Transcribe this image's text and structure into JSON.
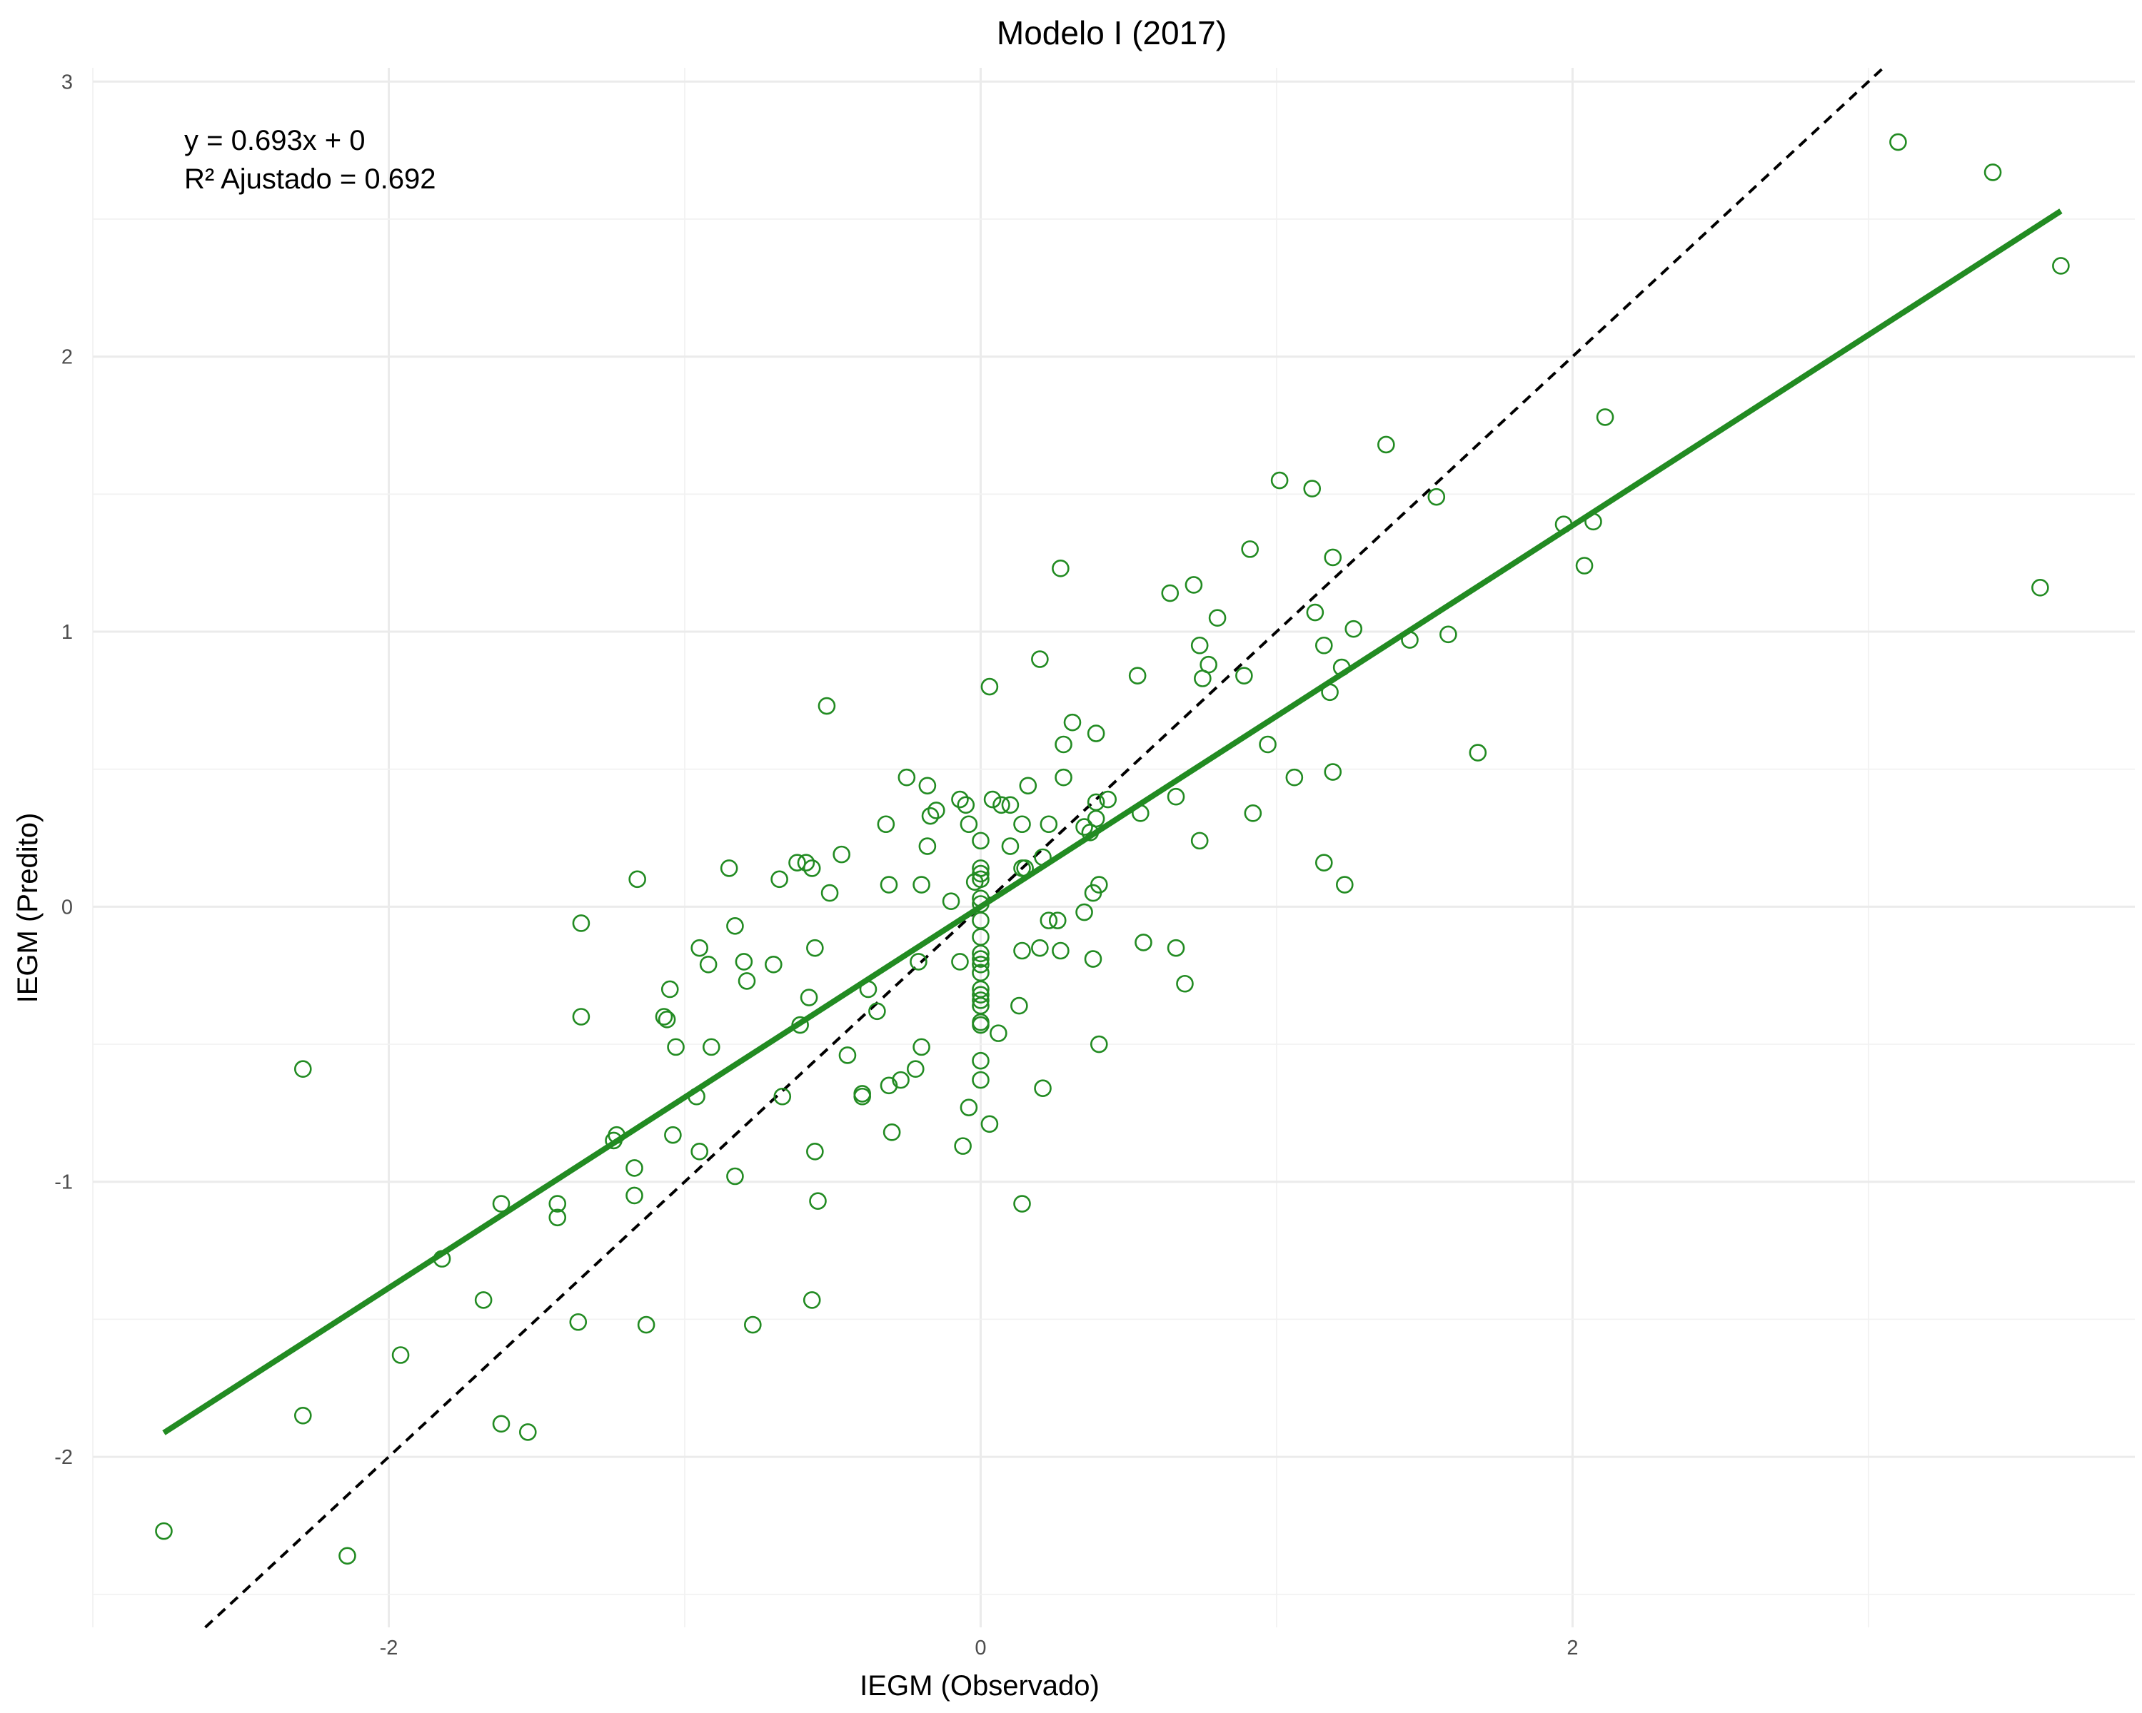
{
  "chart_data": {
    "type": "scatter",
    "title": "Modelo I (2017)",
    "xlabel": "IEGM (Observado)",
    "ylabel": "IEGM (Predito)",
    "xlim": [
      -3.0,
      3.9
    ],
    "ylim": [
      -2.62,
      3.05
    ],
    "x_ticks": [
      -2,
      0,
      2
    ],
    "x_tick_labels": [
      "-2",
      "0",
      "2"
    ],
    "y_ticks": [
      -2,
      -1,
      0,
      1,
      2,
      3
    ],
    "y_tick_labels": [
      "-2",
      "-1",
      "0",
      "1",
      "2",
      "3"
    ],
    "grid": true,
    "colors": {
      "points": "#228B22",
      "fit_line": "#228B22",
      "reference_line": "#000000"
    },
    "annotations": [
      "y = 0.693x + 0",
      "R² Ajustado = 0.692"
    ],
    "fit_line": {
      "slope": 0.693,
      "intercept": 0,
      "x_range": [
        -2.76,
        3.65
      ]
    },
    "reference_line": {
      "slope": 1,
      "intercept": 0,
      "style": "dashed"
    },
    "points": [
      [
        -2.76,
        -2.27
      ],
      [
        -2.14,
        -2.36
      ],
      [
        -2.29,
        -1.85
      ],
      [
        -2.29,
        -0.59
      ],
      [
        -1.96,
        -1.63
      ],
      [
        -1.82,
        -1.28
      ],
      [
        -1.68,
        -1.43
      ],
      [
        -1.62,
        -1.08
      ],
      [
        -1.62,
        -1.88
      ],
      [
        -1.53,
        -1.91
      ],
      [
        -1.43,
        -1.08
      ],
      [
        -1.43,
        -1.13
      ],
      [
        -1.36,
        -1.51
      ],
      [
        -1.35,
        -0.4
      ],
      [
        -1.35,
        -0.06
      ],
      [
        -1.24,
        -0.85
      ],
      [
        -1.23,
        -0.83
      ],
      [
        -1.17,
        -0.95
      ],
      [
        -1.17,
        -1.05
      ],
      [
        -1.16,
        0.1
      ],
      [
        -1.13,
        -1.52
      ],
      [
        -1.07,
        -0.4
      ],
      [
        -1.06,
        -0.41
      ],
      [
        -1.05,
        -0.3
      ],
      [
        -1.04,
        -0.83
      ],
      [
        -1.03,
        -0.51
      ],
      [
        -0.96,
        -0.69
      ],
      [
        -0.95,
        -0.89
      ],
      [
        -0.95,
        -0.15
      ],
      [
        -0.92,
        -0.21
      ],
      [
        -0.91,
        -0.51
      ],
      [
        -0.85,
        0.14
      ],
      [
        -0.83,
        -0.98
      ],
      [
        -0.83,
        -0.07
      ],
      [
        -0.8,
        -0.2
      ],
      [
        -0.79,
        -0.27
      ],
      [
        -0.77,
        -1.52
      ],
      [
        -0.7,
        -0.21
      ],
      [
        -0.68,
        0.1
      ],
      [
        -0.67,
        -0.69
      ],
      [
        -0.62,
        0.16
      ],
      [
        -0.61,
        -0.43
      ],
      [
        -0.59,
        0.16
      ],
      [
        -0.58,
        -0.33
      ],
      [
        -0.57,
        0.14
      ],
      [
        -0.57,
        -1.43
      ],
      [
        -0.56,
        -0.15
      ],
      [
        -0.56,
        -0.89
      ],
      [
        -0.55,
        -1.07
      ],
      [
        -0.52,
        0.73
      ],
      [
        -0.51,
        0.05
      ],
      [
        -0.47,
        0.19
      ],
      [
        -0.45,
        -0.54
      ],
      [
        -0.4,
        -0.68
      ],
      [
        -0.4,
        -0.69
      ],
      [
        -0.38,
        -0.3
      ],
      [
        -0.35,
        -0.38
      ],
      [
        -0.32,
        0.3
      ],
      [
        -0.31,
        0.08
      ],
      [
        -0.31,
        -0.65
      ],
      [
        -0.3,
        -0.82
      ],
      [
        -0.27,
        -0.63
      ],
      [
        -0.25,
        0.47
      ],
      [
        -0.22,
        -0.59
      ],
      [
        -0.21,
        -0.2
      ],
      [
        -0.2,
        0.08
      ],
      [
        -0.2,
        -0.51
      ],
      [
        -0.18,
        0.44
      ],
      [
        -0.18,
        0.22
      ],
      [
        -0.17,
        0.33
      ],
      [
        -0.15,
        0.35
      ],
      [
        -0.1,
        0.02
      ],
      [
        -0.07,
        0.39
      ],
      [
        -0.07,
        -0.2
      ],
      [
        -0.06,
        -0.87
      ],
      [
        -0.05,
        0.37
      ],
      [
        -0.04,
        0.3
      ],
      [
        -0.04,
        -0.73
      ],
      [
        -0.02,
        0.09
      ],
      [
        0,
        0.24
      ],
      [
        0,
        0.14
      ],
      [
        0,
        0.12
      ],
      [
        0,
        0.1
      ],
      [
        0,
        0.03
      ],
      [
        0,
        0.01
      ],
      [
        0,
        -0.05
      ],
      [
        0,
        -0.11
      ],
      [
        0,
        -0.17
      ],
      [
        0,
        -0.19
      ],
      [
        0,
        -0.21
      ],
      [
        0,
        -0.24
      ],
      [
        0,
        -0.3
      ],
      [
        0,
        -0.32
      ],
      [
        0,
        -0.34
      ],
      [
        0,
        -0.36
      ],
      [
        0,
        -0.42
      ],
      [
        0,
        -0.43
      ],
      [
        0,
        -0.56
      ],
      [
        0,
        -0.63
      ],
      [
        0.03,
        0.8
      ],
      [
        0.03,
        -0.79
      ],
      [
        0.04,
        0.39
      ],
      [
        0.06,
        -0.46
      ],
      [
        0.07,
        0.37
      ],
      [
        0.1,
        0.22
      ],
      [
        0.1,
        0.37
      ],
      [
        0.13,
        -0.36
      ],
      [
        0.14,
        -1.08
      ],
      [
        0.14,
        0.3
      ],
      [
        0.14,
        0.14
      ],
      [
        0.14,
        -0.16
      ],
      [
        0.15,
        0.14
      ],
      [
        0.16,
        0.44
      ],
      [
        0.2,
        -0.15
      ],
      [
        0.2,
        0.9
      ],
      [
        0.21,
        0.18
      ],
      [
        0.21,
        -0.66
      ],
      [
        0.23,
        -0.05
      ],
      [
        0.23,
        0.3
      ],
      [
        0.26,
        -0.05
      ],
      [
        0.27,
        -0.16
      ],
      [
        0.27,
        1.23
      ],
      [
        0.28,
        0.59
      ],
      [
        0.28,
        0.47
      ],
      [
        0.31,
        0.67
      ],
      [
        0.35,
        0.29
      ],
      [
        0.35,
        -0.02
      ],
      [
        0.37,
        0.27
      ],
      [
        0.38,
        0.05
      ],
      [
        0.38,
        -0.19
      ],
      [
        0.39,
        0.63
      ],
      [
        0.39,
        0.32
      ],
      [
        0.39,
        0.38
      ],
      [
        0.4,
        0.08
      ],
      [
        0.4,
        -0.5
      ],
      [
        0.43,
        0.39
      ],
      [
        0.53,
        0.84
      ],
      [
        0.54,
        0.34
      ],
      [
        0.55,
        -0.13
      ],
      [
        0.64,
        1.14
      ],
      [
        0.66,
        0.4
      ],
      [
        0.66,
        -0.15
      ],
      [
        0.69,
        -0.28
      ],
      [
        0.72,
        1.17
      ],
      [
        0.74,
        0.95
      ],
      [
        0.74,
        0.24
      ],
      [
        0.75,
        0.83
      ],
      [
        0.77,
        0.88
      ],
      [
        0.8,
        1.05
      ],
      [
        0.89,
        0.84
      ],
      [
        0.91,
        1.3
      ],
      [
        0.92,
        0.34
      ],
      [
        0.97,
        0.59
      ],
      [
        1.01,
        1.55
      ],
      [
        1.06,
        0.47
      ],
      [
        1.12,
        1.52
      ],
      [
        1.13,
        1.07
      ],
      [
        1.16,
        0.95
      ],
      [
        1.16,
        0.16
      ],
      [
        1.18,
        0.78
      ],
      [
        1.19,
        1.27
      ],
      [
        1.19,
        0.49
      ],
      [
        1.22,
        0.87
      ],
      [
        1.23,
        0.08
      ],
      [
        1.26,
        1.01
      ],
      [
        1.37,
        1.68
      ],
      [
        1.45,
        0.97
      ],
      [
        1.54,
        1.49
      ],
      [
        1.58,
        0.99
      ],
      [
        1.68,
        0.56
      ],
      [
        1.97,
        1.39
      ],
      [
        2.04,
        1.24
      ],
      [
        2.07,
        1.4
      ],
      [
        2.11,
        1.78
      ],
      [
        3.1,
        2.78
      ],
      [
        3.42,
        2.67
      ],
      [
        3.58,
        1.16
      ],
      [
        3.65,
        2.33
      ]
    ]
  }
}
